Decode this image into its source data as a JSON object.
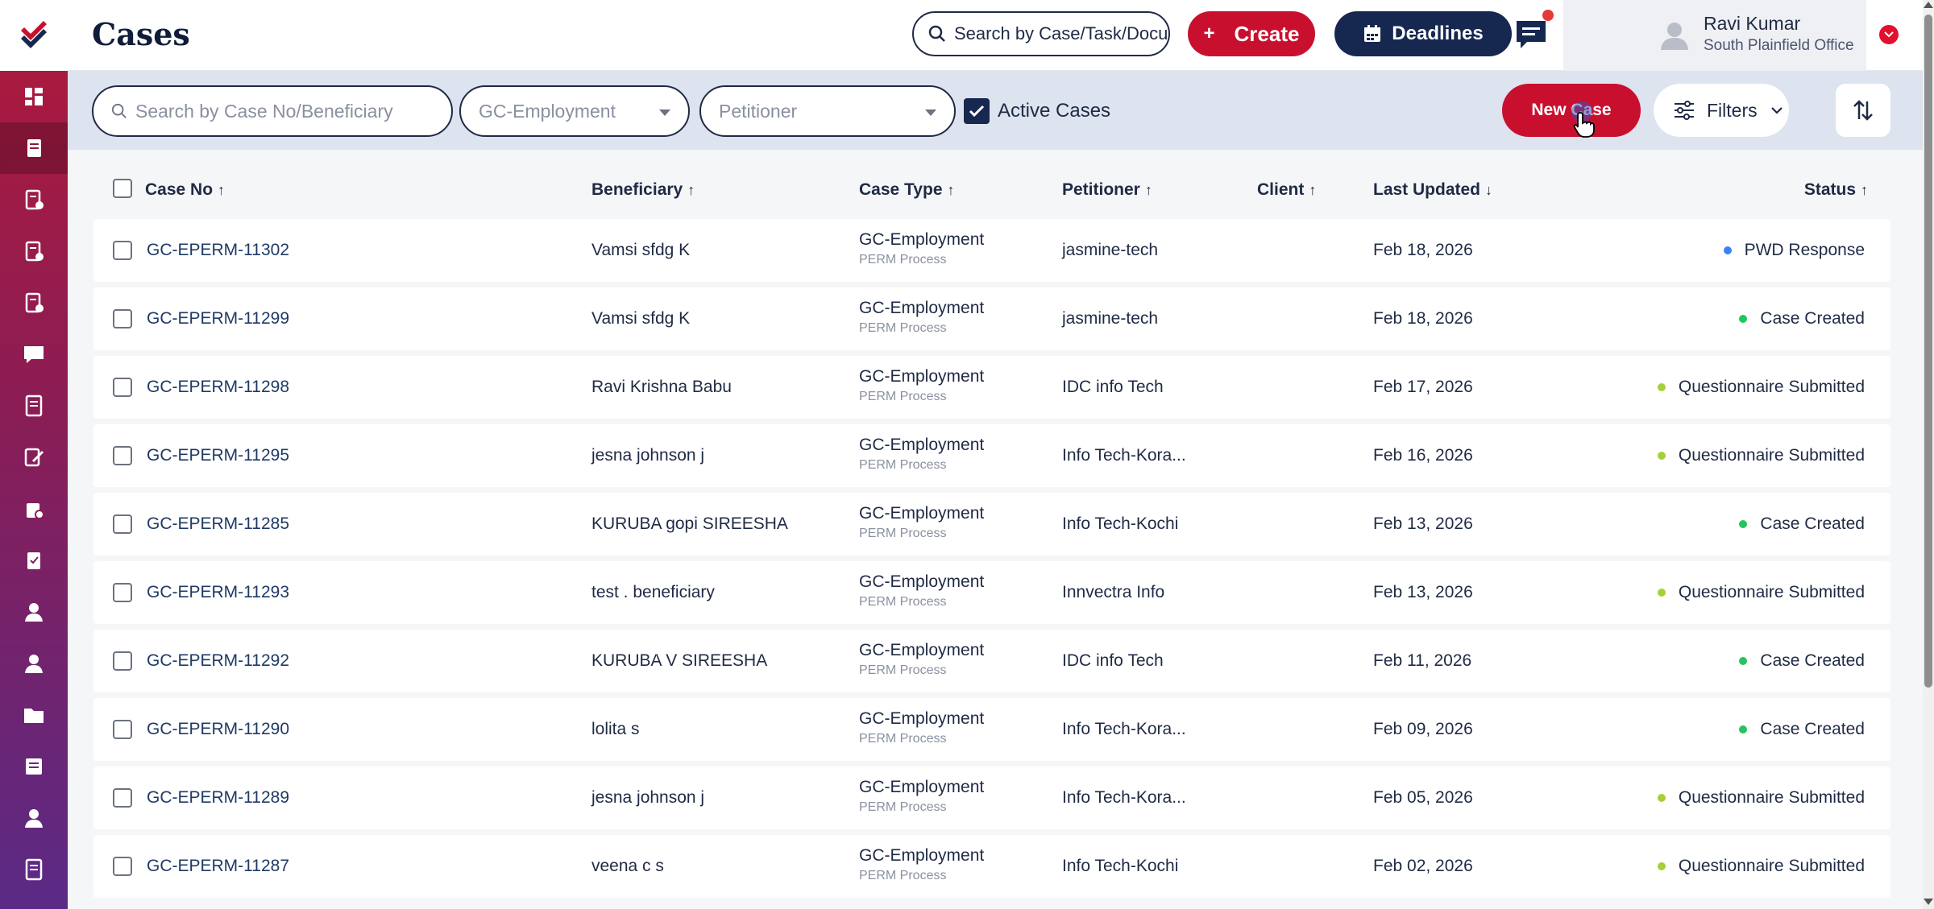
{
  "app": {
    "title": "Cases"
  },
  "colors": {
    "brand_red": "#c8102e",
    "navy": "#16284f",
    "filter_bg": "#dde3ef"
  },
  "sidebar": {
    "items": [
      {
        "icon": "dashboard-icon",
        "active": false
      },
      {
        "icon": "cases-icon",
        "active": true
      },
      {
        "icon": "documents-icon",
        "active": false
      },
      {
        "icon": "documents-settings-icon",
        "active": false
      },
      {
        "icon": "documents-check-icon",
        "active": false
      },
      {
        "icon": "messages-icon",
        "active": false
      },
      {
        "icon": "ledger-icon",
        "active": false
      },
      {
        "icon": "edit-document-icon",
        "active": false
      },
      {
        "icon": "case-settings-icon",
        "active": false
      },
      {
        "icon": "clipboard-icon",
        "active": false
      },
      {
        "icon": "user-icon",
        "active": false
      },
      {
        "icon": "user-tie-icon",
        "active": false
      },
      {
        "icon": "folder-icon",
        "active": false
      },
      {
        "icon": "notes-icon",
        "active": false
      },
      {
        "icon": "user-badge-icon",
        "active": false
      },
      {
        "icon": "book-icon",
        "active": false
      }
    ]
  },
  "header": {
    "search_placeholder": "Search by Case/Task/Docu",
    "create_label": "Create",
    "deadlines_label": "Deadlines",
    "user": {
      "name": "Ravi Kumar",
      "office": "South Plainfield Office"
    }
  },
  "filters": {
    "search_placeholder": "Search by Case No/Beneficiary",
    "case_type_value": "GC-Employment",
    "petitioner_placeholder": "Petitioner",
    "active_cases_label": "Active Cases",
    "active_cases_checked": true,
    "new_case_label": "New Case",
    "filters_label": "Filters"
  },
  "table": {
    "headers": {
      "case_no": "Case No",
      "beneficiary": "Beneficiary",
      "case_type": "Case Type",
      "petitioner": "Petitioner",
      "client": "Client",
      "last_updated": "Last Updated",
      "status": "Status"
    },
    "rows": [
      {
        "case_no": "GC-EPERM-11302",
        "beneficiary": "Vamsi sfdg K",
        "case_type": "GC-Employment",
        "process": "PERM Process",
        "petitioner": "jasmine-tech",
        "client": "",
        "last_updated": "Feb 18, 2026",
        "status": "PWD Response",
        "status_color": "#3b82f6"
      },
      {
        "case_no": "GC-EPERM-11299",
        "beneficiary": "Vamsi sfdg K",
        "case_type": "GC-Employment",
        "process": "PERM Process",
        "petitioner": "jasmine-tech",
        "client": "",
        "last_updated": "Feb 18, 2026",
        "status": "Case Created",
        "status_color": "#22c55e"
      },
      {
        "case_no": "GC-EPERM-11298",
        "beneficiary": "Ravi Krishna Babu",
        "case_type": "GC-Employment",
        "process": "PERM Process",
        "petitioner": "IDC info Tech",
        "client": "",
        "last_updated": "Feb 17, 2026",
        "status": "Questionnaire Submitted",
        "status_color": "#a3d13a"
      },
      {
        "case_no": "GC-EPERM-11295",
        "beneficiary": "jesna johnson j",
        "case_type": "GC-Employment",
        "process": "PERM Process",
        "petitioner": "Info Tech-Kora...",
        "client": "",
        "last_updated": "Feb 16, 2026",
        "status": "Questionnaire Submitted",
        "status_color": "#a3d13a"
      },
      {
        "case_no": "GC-EPERM-11285",
        "beneficiary": "KURUBA gopi SIREESHA",
        "case_type": "GC-Employment",
        "process": "PERM Process",
        "petitioner": "Info Tech-Kochi",
        "client": "",
        "last_updated": "Feb 13, 2026",
        "status": "Case Created",
        "status_color": "#22c55e"
      },
      {
        "case_no": "GC-EPERM-11293",
        "beneficiary": "test . beneficiary",
        "case_type": "GC-Employment",
        "process": "PERM Process",
        "petitioner": "Innvectra Info",
        "client": "",
        "last_updated": "Feb 13, 2026",
        "status": "Questionnaire Submitted",
        "status_color": "#a3d13a"
      },
      {
        "case_no": "GC-EPERM-11292",
        "beneficiary": "KURUBA V SIREESHA",
        "case_type": "GC-Employment",
        "process": "PERM Process",
        "petitioner": "IDC info Tech",
        "client": "",
        "last_updated": "Feb 11, 2026",
        "status": "Case Created",
        "status_color": "#22c55e"
      },
      {
        "case_no": "GC-EPERM-11290",
        "beneficiary": "lolita s",
        "case_type": "GC-Employment",
        "process": "PERM Process",
        "petitioner": "Info Tech-Kora...",
        "client": "",
        "last_updated": "Feb 09, 2026",
        "status": "Case Created",
        "status_color": "#22c55e"
      },
      {
        "case_no": "GC-EPERM-11289",
        "beneficiary": "jesna johnson j",
        "case_type": "GC-Employment",
        "process": "PERM Process",
        "petitioner": "Info Tech-Kora...",
        "client": "",
        "last_updated": "Feb 05, 2026",
        "status": "Questionnaire Submitted",
        "status_color": "#a3d13a"
      },
      {
        "case_no": "GC-EPERM-11287",
        "beneficiary": "veena c s",
        "case_type": "GC-Employment",
        "process": "PERM Process",
        "petitioner": "Info Tech-Kochi",
        "client": "",
        "last_updated": "Feb 02, 2026",
        "status": "Questionnaire Submitted",
        "status_color": "#a3d13a"
      }
    ]
  }
}
